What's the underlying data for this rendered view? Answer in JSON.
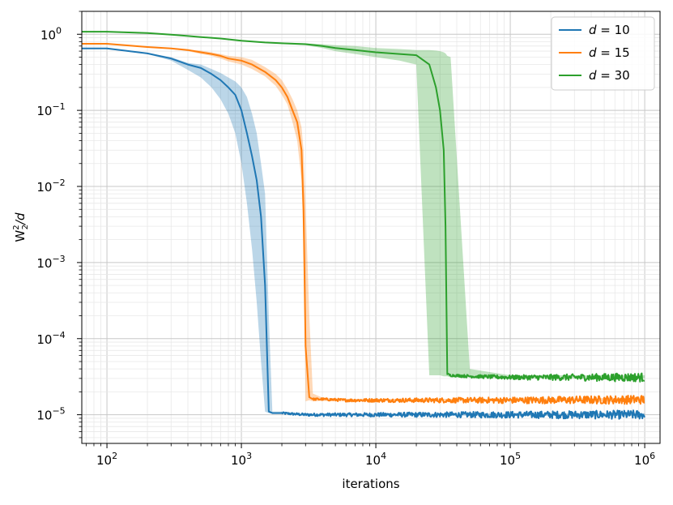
{
  "chart_data": {
    "type": "line",
    "xlabel": "iterations",
    "ylabel_base": "W",
    "ylabel_sup": "2",
    "ylabel_sub": "2",
    "ylabel_tail": "/d",
    "xscale": "log",
    "yscale": "log",
    "xlim": [
      65,
      1300000
    ],
    "ylim": [
      4.2e-06,
      2.0
    ],
    "grid": true,
    "legend_position": "top-right",
    "x_ticks": [
      {
        "value": 100,
        "base": "10",
        "exp": "2"
      },
      {
        "value": 1000,
        "base": "10",
        "exp": "3"
      },
      {
        "value": 10000,
        "base": "10",
        "exp": "4"
      },
      {
        "value": 100000,
        "base": "10",
        "exp": "5"
      },
      {
        "value": 1000000,
        "base": "10",
        "exp": "6"
      }
    ],
    "y_ticks": [
      {
        "value": 1,
        "base": "10",
        "exp": "0"
      },
      {
        "value": 0.1,
        "base": "10",
        "exp": "−1"
      },
      {
        "value": 0.01,
        "base": "10",
        "exp": "−2"
      },
      {
        "value": 0.001,
        "base": "10",
        "exp": "−3"
      },
      {
        "value": 0.0001,
        "base": "10",
        "exp": "−4"
      },
      {
        "value": 1e-05,
        "base": "10",
        "exp": "−5"
      }
    ],
    "series": [
      {
        "name": "d = 10",
        "legend_var": "d",
        "legend_val": "10",
        "color": "#1f77b4",
        "x": [
          60,
          100,
          200,
          300,
          400,
          500,
          600,
          700,
          800,
          900,
          1000,
          1100,
          1200,
          1300,
          1400,
          1500,
          1600,
          1700,
          1800,
          2000,
          2500,
          3000,
          4000,
          6000,
          10000,
          100000,
          1000000
        ],
        "y": [
          0.65,
          0.65,
          0.56,
          0.48,
          0.4,
          0.36,
          0.3,
          0.25,
          0.2,
          0.16,
          0.1,
          0.05,
          0.025,
          0.012,
          0.004,
          0.0005,
          1.1e-05,
          1.05e-05,
          1.05e-05,
          1.05e-05,
          1.02e-05,
          1e-05,
          1e-05,
          1e-05,
          1e-05,
          1e-05,
          1e-05
        ],
        "band_lo": [
          0.64,
          0.64,
          0.55,
          0.45,
          0.34,
          0.27,
          0.2,
          0.14,
          0.09,
          0.05,
          0.02,
          0.006,
          0.0015,
          0.0003,
          5e-05,
          1.1e-05,
          1.05e-05,
          1.03e-05,
          1.03e-05,
          1.03e-05,
          1e-05,
          9.8e-06,
          9.8e-06,
          9.8e-06,
          9.8e-06,
          9.7e-06,
          9.7e-06
        ],
        "band_hi": [
          0.66,
          0.66,
          0.57,
          0.5,
          0.42,
          0.4,
          0.35,
          0.31,
          0.27,
          0.24,
          0.2,
          0.15,
          0.09,
          0.05,
          0.02,
          0.008,
          0.0002,
          1.1e-05,
          1.1e-05,
          1.1e-05,
          1.05e-05,
          1.03e-05,
          1.03e-05,
          1.03e-05,
          1.03e-05,
          1.04e-05,
          1.04e-05
        ],
        "noise_from": 2000
      },
      {
        "name": "d = 15",
        "legend_var": "d",
        "legend_val": "15",
        "color": "#ff7f0e",
        "x": [
          60,
          100,
          200,
          300,
          400,
          500,
          600,
          700,
          800,
          1000,
          1200,
          1500,
          1800,
          2000,
          2200,
          2400,
          2600,
          2800,
          2900,
          3000,
          3200,
          3400,
          4000,
          6000,
          10000,
          100000,
          1000000
        ],
        "y": [
          0.75,
          0.75,
          0.68,
          0.65,
          0.62,
          0.58,
          0.55,
          0.52,
          0.48,
          0.45,
          0.4,
          0.32,
          0.25,
          0.2,
          0.15,
          0.1,
          0.07,
          0.03,
          0.005,
          8e-05,
          1.7e-05,
          1.6e-05,
          1.6e-05,
          1.55e-05,
          1.55e-05,
          1.55e-05,
          1.58e-05
        ],
        "band_lo": [
          0.74,
          0.74,
          0.67,
          0.64,
          0.6,
          0.55,
          0.52,
          0.48,
          0.44,
          0.4,
          0.35,
          0.28,
          0.21,
          0.16,
          0.12,
          0.07,
          0.04,
          0.012,
          0.0015,
          1.5e-05,
          1.55e-05,
          1.5e-05,
          1.52e-05,
          1.5e-05,
          1.5e-05,
          1.5e-05,
          1.52e-05
        ],
        "band_hi": [
          0.76,
          0.76,
          0.69,
          0.66,
          0.63,
          0.61,
          0.58,
          0.55,
          0.52,
          0.5,
          0.46,
          0.37,
          0.3,
          0.25,
          0.19,
          0.14,
          0.1,
          0.06,
          0.03,
          0.006,
          0.0002,
          1.9e-05,
          1.68e-05,
          1.62e-05,
          1.62e-05,
          1.62e-05,
          1.68e-05
        ],
        "noise_from": 3400
      },
      {
        "name": "d = 30",
        "legend_var": "d",
        "legend_val": "30",
        "color": "#2ca02c",
        "x": [
          60,
          100,
          200,
          300,
          400,
          500,
          700,
          1000,
          1500,
          2000,
          3000,
          4000,
          5000,
          7000,
          10000,
          15000,
          20000,
          25000,
          28000,
          30000,
          32000,
          33000,
          34000,
          36000,
          50000,
          100000,
          1000000
        ],
        "y": [
          1.08,
          1.08,
          1.04,
          0.99,
          0.95,
          0.92,
          0.88,
          0.82,
          0.78,
          0.76,
          0.74,
          0.7,
          0.66,
          0.62,
          0.58,
          0.55,
          0.53,
          0.4,
          0.2,
          0.1,
          0.03,
          0.003,
          3.4e-05,
          3.3e-05,
          3.2e-05,
          3.1e-05,
          3.1e-05
        ],
        "band_lo": [
          1.07,
          1.07,
          1.03,
          0.98,
          0.94,
          0.91,
          0.87,
          0.81,
          0.77,
          0.75,
          0.72,
          0.66,
          0.6,
          0.55,
          0.5,
          0.45,
          0.4,
          3.3e-05,
          3.3e-05,
          3.3e-05,
          3.2e-05,
          3.2e-05,
          3.2e-05,
          3.1e-05,
          3.1e-05,
          3e-05,
          3e-05
        ],
        "band_hi": [
          1.09,
          1.09,
          1.05,
          1.0,
          0.96,
          0.93,
          0.89,
          0.83,
          0.79,
          0.78,
          0.76,
          0.74,
          0.72,
          0.7,
          0.66,
          0.64,
          0.62,
          0.62,
          0.61,
          0.6,
          0.58,
          0.56,
          0.52,
          0.5,
          4e-05,
          3.3e-05,
          3.3e-05
        ],
        "noise_from": 34000
      }
    ]
  }
}
